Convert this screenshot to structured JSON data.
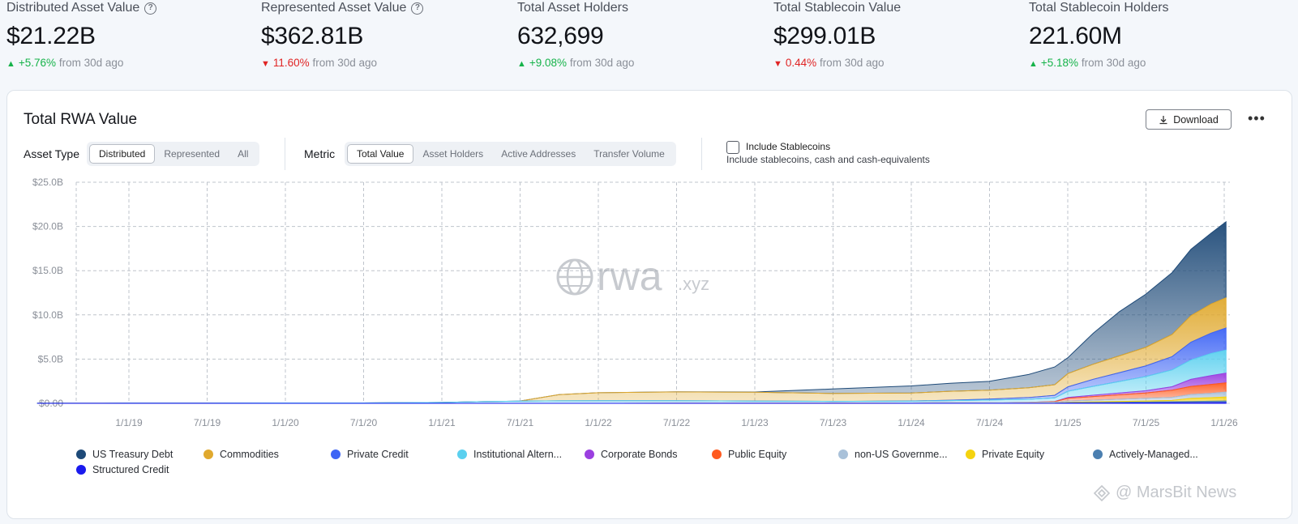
{
  "stats": [
    {
      "label": "Distributed Asset Value",
      "help": true,
      "value": "$21.22B",
      "direction": "up",
      "change": "+5.76%",
      "suffix": "from 30d ago"
    },
    {
      "label": "Represented Asset Value",
      "help": true,
      "value": "$362.81B",
      "direction": "down",
      "change": "11.60%",
      "suffix": "from 30d ago"
    },
    {
      "label": "Total Asset Holders",
      "help": false,
      "value": "632,699",
      "direction": "up",
      "change": "+9.08%",
      "suffix": "from 30d ago"
    },
    {
      "label": "Total Stablecoin Value",
      "help": false,
      "value": "$299.01B",
      "direction": "down",
      "change": "0.44%",
      "suffix": "from 30d ago"
    },
    {
      "label": "Total Stablecoin Holders",
      "help": false,
      "value": "221.60M",
      "direction": "up",
      "change": "+5.18%",
      "suffix": "from 30d ago"
    }
  ],
  "card": {
    "title": "Total RWA Value",
    "download_label": "Download",
    "more_label": "•••"
  },
  "controls": {
    "asset_type_label": "Asset Type",
    "asset_type_options": [
      "Distributed",
      "Represented",
      "All"
    ],
    "asset_type_selected": "Distributed",
    "metric_label": "Metric",
    "metric_options": [
      "Total Value",
      "Asset Holders",
      "Active Addresses",
      "Transfer Volume"
    ],
    "metric_selected": "Total Value",
    "include_stablecoins_label": "Include Stablecoins",
    "include_stablecoins_desc": "Include stablecoins, cash and cash-equivalents",
    "include_stablecoins_checked": false
  },
  "chart_watermark": {
    "big": "rwa",
    "small": ".xyz"
  },
  "chart_data": {
    "type": "area",
    "stacked": true,
    "title": "Total RWA Value",
    "xlabel": "",
    "ylabel": "",
    "y_ticks": [
      "$0.00",
      "$5.0B",
      "$10.0B",
      "$15.0B",
      "$20.0B",
      "$25.0B"
    ],
    "ylim": [
      0,
      25
    ],
    "y_unit": "B USD",
    "x_ticks": [
      "1/1/19",
      "7/1/19",
      "1/1/20",
      "7/1/20",
      "1/1/21",
      "7/1/21",
      "1/1/22",
      "7/1/22",
      "1/1/23",
      "7/1/23",
      "1/1/24",
      "7/1/24",
      "1/1/25",
      "7/1/25",
      "1/1/26"
    ],
    "grid": true,
    "legend_position": "bottom",
    "x": [
      "2018-06-01",
      "2019-01-01",
      "2019-07-01",
      "2020-01-01",
      "2020-07-01",
      "2021-01-01",
      "2021-04-15",
      "2021-07-01",
      "2021-10-01",
      "2022-01-01",
      "2022-07-01",
      "2023-01-01",
      "2023-07-01",
      "2024-01-01",
      "2024-04-01",
      "2024-07-01",
      "2024-10-01",
      "2024-12-01",
      "2025-01-01",
      "2025-03-01",
      "2025-05-01",
      "2025-07-01",
      "2025-09-01",
      "2025-10-15",
      "2025-12-01",
      "2026-01-05"
    ],
    "series": [
      {
        "name": "Structured Credit",
        "color": "#1a1aee",
        "values": [
          0,
          0,
          0,
          0,
          0,
          0,
          0,
          0,
          0,
          0,
          0,
          0,
          0,
          0,
          0,
          0,
          0,
          0,
          0.02,
          0.03,
          0.04,
          0.05,
          0.06,
          0.07,
          0.08,
          0.09
        ]
      },
      {
        "name": "Actively-Managed...",
        "color": "#4b7fb0",
        "values": [
          0,
          0,
          0,
          0,
          0,
          0,
          0,
          0,
          0,
          0,
          0,
          0,
          0,
          0,
          0,
          0,
          0,
          0.02,
          0.05,
          0.06,
          0.08,
          0.1,
          0.12,
          0.14,
          0.16,
          0.18
        ]
      },
      {
        "name": "Private Equity",
        "color": "#f5d30f",
        "values": [
          0,
          0,
          0,
          0,
          0,
          0,
          0,
          0,
          0,
          0,
          0,
          0,
          0,
          0,
          0,
          0,
          0,
          0,
          0.05,
          0.08,
          0.1,
          0.12,
          0.15,
          0.35,
          0.4,
          0.45
        ]
      },
      {
        "name": "non-US Governme...",
        "color": "#a9c1d9",
        "values": [
          0,
          0,
          0,
          0,
          0,
          0,
          0,
          0,
          0,
          0,
          0.01,
          0.01,
          0.02,
          0.05,
          0.06,
          0.08,
          0.1,
          0.12,
          0.15,
          0.2,
          0.25,
          0.3,
          0.35,
          0.45,
          0.5,
          0.55
        ]
      },
      {
        "name": "Public Equity",
        "color": "#ff5a1f",
        "values": [
          0,
          0,
          0,
          0,
          0,
          0,
          0,
          0,
          0,
          0,
          0,
          0,
          0,
          0,
          0,
          0,
          0.01,
          0.05,
          0.3,
          0.4,
          0.5,
          0.6,
          0.8,
          0.9,
          1.0,
          1.05
        ]
      },
      {
        "name": "Corporate Bonds",
        "color": "#9b3fe0",
        "values": [
          0,
          0,
          0,
          0,
          0,
          0,
          0,
          0,
          0,
          0,
          0,
          0,
          0,
          0,
          0,
          0,
          0,
          0.02,
          0.1,
          0.15,
          0.2,
          0.25,
          0.4,
          0.8,
          1.0,
          1.1
        ]
      },
      {
        "name": "Institutional Altern...",
        "color": "#5bd0ef",
        "values": [
          0.01,
          0.02,
          0.03,
          0.05,
          0.05,
          0.1,
          0.2,
          0.25,
          0.28,
          0.3,
          0.28,
          0.25,
          0.2,
          0.2,
          0.25,
          0.3,
          0.35,
          0.4,
          0.7,
          1.0,
          1.3,
          1.6,
          1.9,
          2.2,
          2.5,
          2.6
        ]
      },
      {
        "name": "Private Credit",
        "color": "#3d64f5",
        "values": [
          0,
          0,
          0,
          0,
          0,
          0,
          0,
          0,
          0,
          0,
          0,
          0,
          0,
          0.02,
          0.05,
          0.1,
          0.2,
          0.3,
          0.5,
          0.8,
          1.0,
          1.2,
          1.5,
          2.0,
          2.3,
          2.5
        ]
      },
      {
        "name": "Commodities",
        "color": "#e0a92e",
        "values": [
          0,
          0,
          0,
          0,
          0,
          0,
          0,
          0,
          0.7,
          0.9,
          1.0,
          1.0,
          0.9,
          0.9,
          1.0,
          1.0,
          1.1,
          1.2,
          1.5,
          1.7,
          1.9,
          2.1,
          2.5,
          3.0,
          3.3,
          3.4
        ]
      },
      {
        "name": "US Treasury Debt",
        "color": "#1e4a78",
        "values": [
          0,
          0,
          0,
          0,
          0,
          0,
          0,
          0,
          0,
          0,
          0.01,
          0.02,
          0.5,
          0.8,
          0.9,
          1.0,
          1.5,
          2.0,
          1.8,
          3.5,
          5.0,
          6.0,
          7.0,
          7.5,
          8.0,
          8.6
        ]
      }
    ]
  },
  "legend": [
    {
      "name": "US Treasury Debt",
      "color": "#1e4a78"
    },
    {
      "name": "Commodities",
      "color": "#e0a92e"
    },
    {
      "name": "Private Credit",
      "color": "#3d64f5"
    },
    {
      "name": "Institutional Altern...",
      "color": "#5bd0ef"
    },
    {
      "name": "Corporate Bonds",
      "color": "#9b3fe0"
    },
    {
      "name": "Public Equity",
      "color": "#ff5a1f"
    },
    {
      "name": "non-US Governme...",
      "color": "#a9c1d9"
    },
    {
      "name": "Private Equity",
      "color": "#f5d30f"
    },
    {
      "name": "Actively-Managed...",
      "color": "#4b7fb0"
    },
    {
      "name": "Structured Credit",
      "color": "#1a1aee"
    }
  ],
  "watermark": {
    "text": "@ MarsBit News"
  }
}
